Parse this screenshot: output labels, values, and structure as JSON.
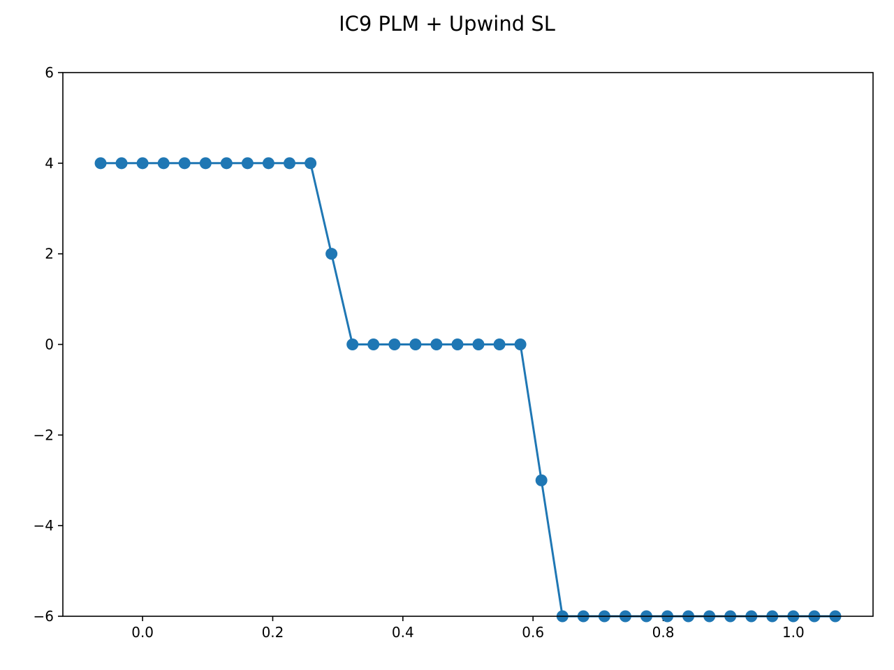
{
  "chart_data": {
    "type": "line",
    "title": "IC9 PLM + Upwind SL",
    "xlabel": "",
    "ylabel": "",
    "xlim": [
      -0.1225,
      1.1225
    ],
    "ylim": [
      -6,
      6
    ],
    "x_ticks": [
      0.0,
      0.2,
      0.4,
      0.6,
      0.8,
      1.0
    ],
    "x_tick_labels": [
      "0.0",
      "0.2",
      "0.4",
      "0.6",
      "0.8",
      "1.0"
    ],
    "y_ticks": [
      -6,
      -4,
      -2,
      0,
      2,
      4,
      6
    ],
    "y_tick_labels": [
      "−6",
      "−4",
      "−2",
      "0",
      "2",
      "4",
      "6"
    ],
    "grid": false,
    "legend": "none",
    "series": [
      {
        "color": "#1f77b4",
        "marker": "circle",
        "x": [
          -0.0645,
          -0.0323,
          0.0,
          0.0323,
          0.0645,
          0.0968,
          0.129,
          0.1613,
          0.1935,
          0.2258,
          0.2581,
          0.2903,
          0.3226,
          0.3548,
          0.3871,
          0.4194,
          0.4516,
          0.4839,
          0.5161,
          0.5484,
          0.5806,
          0.6129,
          0.6452,
          0.6774,
          0.7097,
          0.7419,
          0.7742,
          0.8065,
          0.8387,
          0.871,
          0.9032,
          0.9355,
          0.9677,
          1.0,
          1.0323,
          1.0645
        ],
        "y": [
          4,
          4,
          4,
          4,
          4,
          4,
          4,
          4,
          4,
          4,
          4,
          2,
          0,
          0,
          0,
          0,
          0,
          0,
          0,
          0,
          0,
          -3,
          -6,
          -6,
          -6,
          -6,
          -6,
          -6,
          -6,
          -6,
          -6,
          -6,
          -6,
          -6,
          -6,
          -6
        ]
      }
    ]
  }
}
